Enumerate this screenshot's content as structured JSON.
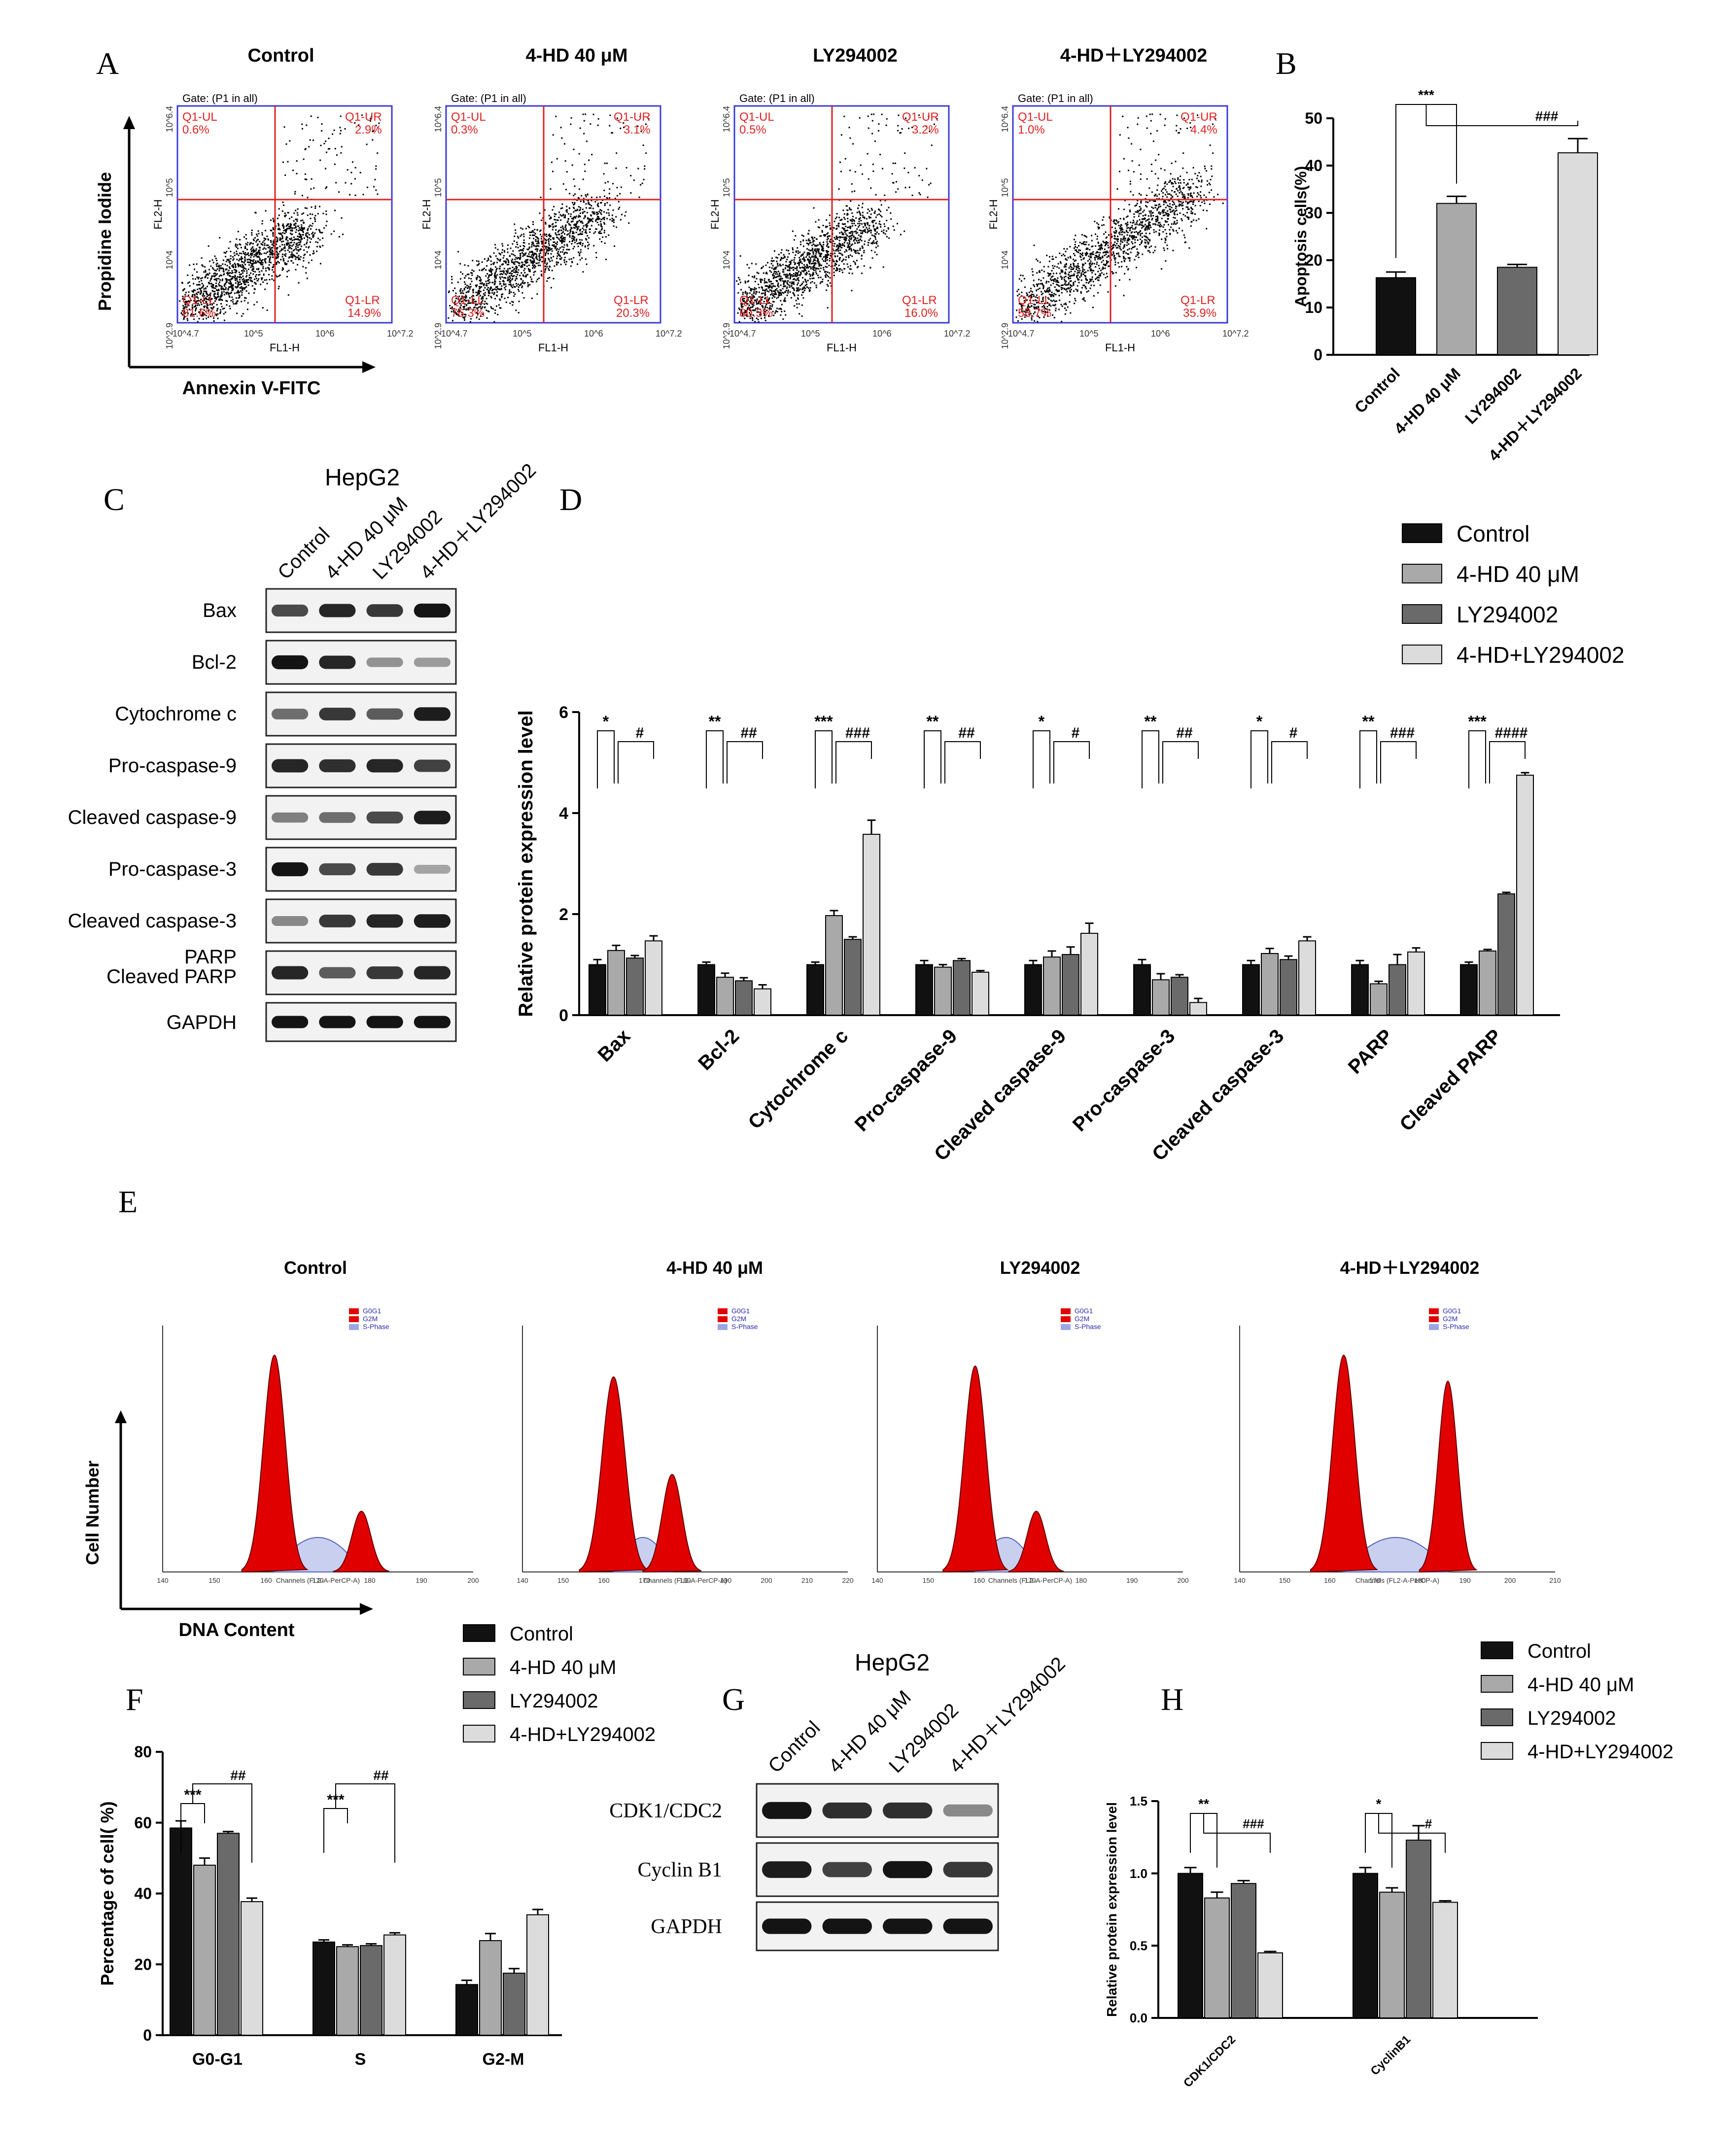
{
  "panels": {
    "A": "A",
    "B": "B",
    "C": "C",
    "D": "D",
    "E": "E",
    "F": "F",
    "G": "G",
    "H": "H"
  },
  "groups": [
    "Control",
    "4-HD 40 μM",
    "LY294002",
    "4-HD+LY294002"
  ],
  "group_colors": [
    "#111111",
    "#a9a9a9",
    "#6a6a6a",
    "#dcdcdc"
  ],
  "flow": {
    "titles": [
      "Control",
      "4-HD 40 μM",
      "LY294002",
      "4-HD＋LY294002"
    ],
    "gate": "Gate: (P1 in all)",
    "xaxis_small": "FL1-H",
    "yaxis_small": "FL2-H",
    "x_axis_label": "Annexin V-FITC",
    "y_axis_label": "Propidine Iodide",
    "quadrant_labels": [
      "Q1-UL",
      "Q1-UR",
      "Q1-LL",
      "Q1-LR"
    ],
    "plots": [
      {
        "ul": "0.6%",
        "ur": "2.9%",
        "ll": "81.6%",
        "lr": "14.9%"
      },
      {
        "ul": "0.3%",
        "ur": "3.1%",
        "ll": "76.3%",
        "lr": "20.3%"
      },
      {
        "ul": "0.5%",
        "ur": "3.2%",
        "ll": "80.3%",
        "lr": "16.0%"
      },
      {
        "ul": "1.0%",
        "ur": "4.4%",
        "ll": "58.7%",
        "lr": "35.9%"
      }
    ],
    "tick_y": [
      "10^2.9",
      "10^4",
      "10^5",
      "10^6.4"
    ],
    "tick_x": [
      "10^4.7",
      "10^5",
      "10^6",
      "10^7.2"
    ]
  },
  "cellcycle_plots": {
    "titles": [
      "Control",
      "4-HD 40 μM",
      "LY294002",
      "4-HD＋LY294002"
    ],
    "legend": [
      "G0G1",
      "G2M",
      "S-Phase"
    ],
    "xlabel_small": "Channels (FL2-A-PerCP-A)",
    "x_axis_label": "DNA Content",
    "y_axis_label": "Cell Number",
    "xticks": [
      [
        "140",
        "150",
        "160",
        "170",
        "180",
        "190",
        "200"
      ],
      [
        "140",
        "150",
        "160",
        "170",
        "180",
        "190",
        "200",
        "210",
        "220"
      ],
      [
        "140",
        "150",
        "160",
        "170",
        "180",
        "190",
        "200"
      ],
      [
        "140",
        "150",
        "160",
        "170",
        "180",
        "190",
        "200",
        "210"
      ]
    ]
  },
  "blots": {
    "C": {
      "cell_line": "HepG2",
      "lanes": [
        "Control",
        "4-HD 40 μM",
        "LY294002",
        "4-HD＋LY294002"
      ],
      "rows": [
        "Bax",
        "Bcl-2",
        "Cytochrome c",
        "Pro-caspase-9",
        "Cleaved caspase-9",
        "Pro-caspase-3",
        "Cleaved caspase-3",
        "PARP",
        "Cleaved PARP",
        "GAPDH"
      ]
    },
    "G": {
      "cell_line": "HepG2",
      "lanes": [
        "Control",
        "4-HD 40 μM",
        "LY294002",
        "4-HD＋LY294002"
      ],
      "rows": [
        "CDK1/CDC2",
        "Cyclin B1",
        "GAPDH"
      ]
    }
  },
  "chart_data": [
    {
      "panel": "B",
      "type": "bar",
      "categories": [
        "Control",
        "4-HD 40 μM",
        "LY294002",
        "4-HD＋LY294002"
      ],
      "values": [
        16.3,
        32.0,
        18.5,
        42.7
      ],
      "errors": [
        1.2,
        1.5,
        0.6,
        3.0
      ],
      "ylabel": "Apoptosis cells(%)",
      "ylim": [
        0,
        50
      ],
      "yticks": [
        "0",
        "10",
        "20",
        "30",
        "40",
        "50"
      ],
      "significance": [
        "***",
        "###"
      ]
    },
    {
      "panel": "D",
      "type": "bar",
      "categories": [
        "Bax",
        "Bcl-2",
        "Cytochrome c",
        "Pro-caspase-9",
        "Cleaved caspase-9",
        "Pro-caspase-3",
        "Cleaved caspase-3",
        "PARP",
        "Cleaved PARP"
      ],
      "series": [
        {
          "name": "Control",
          "values": [
            1.0,
            1.0,
            1.0,
            1.0,
            1.0,
            1.0,
            1.0,
            1.0,
            1.0
          ],
          "errors": [
            0.1,
            0.05,
            0.05,
            0.08,
            0.08,
            0.1,
            0.08,
            0.08,
            0.05
          ]
        },
        {
          "name": "4-HD 40 μM",
          "values": [
            1.28,
            0.75,
            1.97,
            0.95,
            1.15,
            0.7,
            1.22,
            0.62,
            1.27
          ],
          "errors": [
            0.1,
            0.08,
            0.1,
            0.05,
            0.12,
            0.12,
            0.1,
            0.05,
            0.03
          ]
        },
        {
          "name": "LY294002",
          "values": [
            1.13,
            0.68,
            1.5,
            1.08,
            1.2,
            0.75,
            1.1,
            1.0,
            2.4
          ],
          "errors": [
            0.05,
            0.06,
            0.05,
            0.04,
            0.15,
            0.05,
            0.07,
            0.2,
            0.03
          ]
        },
        {
          "name": "4-HD+LY294002",
          "values": [
            1.47,
            0.52,
            3.58,
            0.85,
            1.62,
            0.25,
            1.47,
            1.25,
            4.75
          ],
          "errors": [
            0.1,
            0.08,
            0.28,
            0.03,
            0.2,
            0.08,
            0.08,
            0.08,
            0.05
          ]
        }
      ],
      "ylabel": "Relative protein expression level",
      "ylim": [
        0,
        6
      ],
      "yticks": [
        "0",
        "2",
        "4",
        "6"
      ],
      "significance": [
        [
          "*",
          "#"
        ],
        [
          "**",
          "##"
        ],
        [
          "***",
          "###"
        ],
        [
          "**",
          "##"
        ],
        [
          "*",
          "#"
        ],
        [
          "**",
          "##"
        ],
        [
          "*",
          "#"
        ],
        [
          "**",
          "###"
        ],
        [
          "***",
          "####"
        ]
      ]
    },
    {
      "panel": "F",
      "type": "bar",
      "categories": [
        "G0-G1",
        "S",
        "G2-M"
      ],
      "series": [
        {
          "name": "Control",
          "values": [
            58.5,
            26.3,
            14.3
          ],
          "errors": [
            2.0,
            0.6,
            1.2
          ]
        },
        {
          "name": "4-HD 40 μM",
          "values": [
            48.0,
            25.0,
            26.7
          ],
          "errors": [
            2.0,
            0.5,
            2.0
          ]
        },
        {
          "name": "LY294002",
          "values": [
            57.0,
            25.3,
            17.5
          ],
          "errors": [
            0.5,
            0.5,
            1.3
          ]
        },
        {
          "name": "4-HD+LY294002",
          "values": [
            37.7,
            28.3,
            34.0
          ],
          "errors": [
            1.0,
            0.6,
            1.5
          ]
        }
      ],
      "ylabel": "Percentage of cell( %)",
      "ylim": [
        0,
        80
      ],
      "yticks": [
        "0",
        "20",
        "40",
        "60",
        "80"
      ],
      "significance": [
        [
          "***",
          "##"
        ],
        [
          "***",
          "##"
        ]
      ]
    },
    {
      "panel": "H",
      "type": "bar",
      "categories": [
        "CDK1/CDC2",
        "CyclinB1"
      ],
      "series": [
        {
          "name": "Control",
          "values": [
            1.0,
            1.0
          ],
          "errors": [
            0.04,
            0.04
          ]
        },
        {
          "name": "4-HD 40 μM",
          "values": [
            0.83,
            0.87
          ],
          "errors": [
            0.04,
            0.03
          ]
        },
        {
          "name": "LY294002",
          "values": [
            0.93,
            1.23
          ],
          "errors": [
            0.02,
            0.1
          ]
        },
        {
          "name": "4-HD+LY294002",
          "values": [
            0.45,
            0.8
          ],
          "errors": [
            0.01,
            0.01
          ]
        }
      ],
      "ylabel": "Relative protein expression level",
      "ylim": [
        0,
        1.5
      ],
      "yticks": [
        "0.0",
        "0.5",
        "1.0",
        "1.5"
      ],
      "significance": [
        [
          "**",
          "###"
        ],
        [
          "*",
          "#"
        ]
      ]
    }
  ]
}
